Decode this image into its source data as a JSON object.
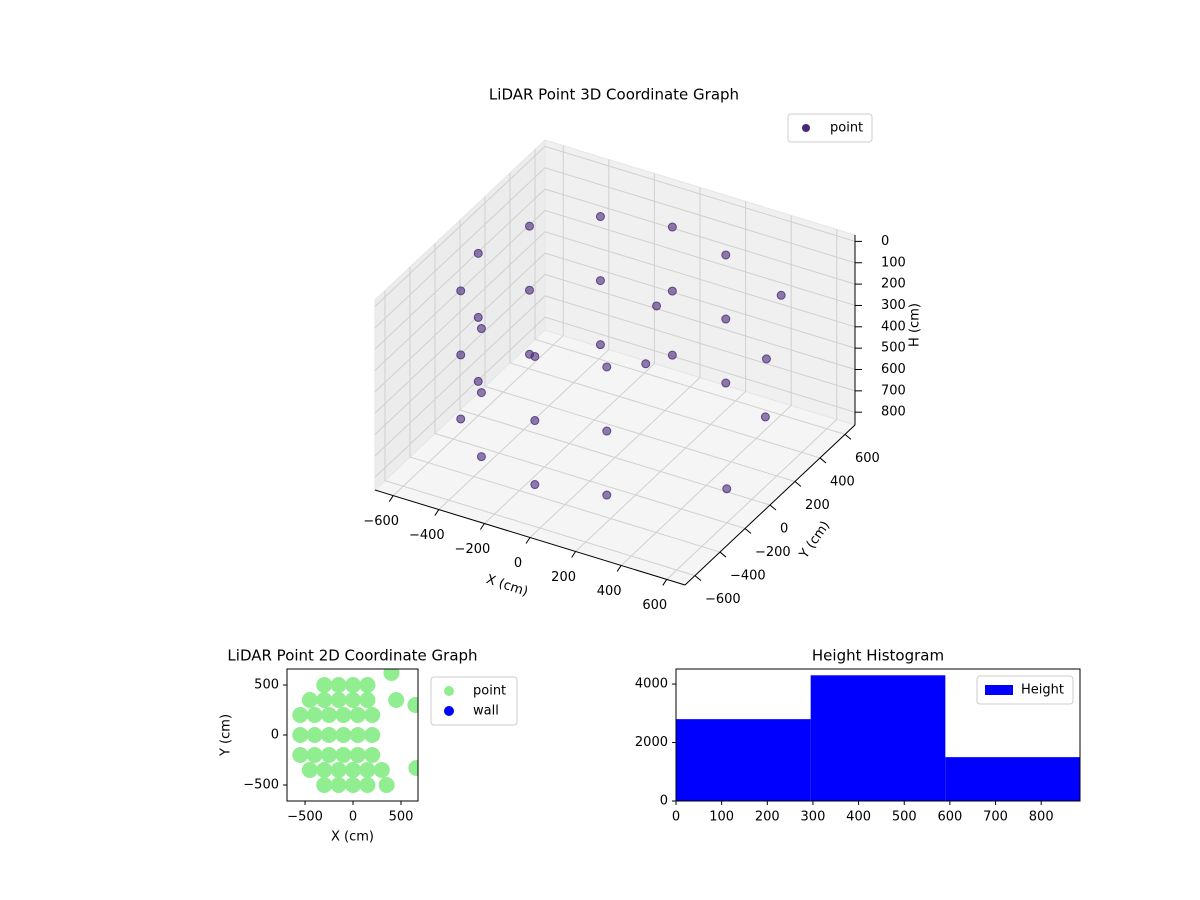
{
  "chart_data": [
    {
      "type": "scatter3d",
      "title": "LiDAR Point 3D Coordinate Graph",
      "xlabel": "X (cm)",
      "ylabel": "Y (cm)",
      "zlabel": "H (cm)",
      "xlim": [
        -680,
        680
      ],
      "ylim": [
        -680,
        680
      ],
      "zlim": [
        860,
        -30
      ],
      "xticks": [
        {
          "value": -600,
          "label": "−600"
        },
        {
          "value": -400,
          "label": "−400"
        },
        {
          "value": -200,
          "label": "−200"
        },
        0,
        200,
        400,
        600
      ],
      "yticks": [
        {
          "value": -600,
          "label": "−600"
        },
        {
          "value": -400,
          "label": "−400"
        },
        {
          "value": -200,
          "label": "−200"
        },
        0,
        200,
        400,
        600
      ],
      "zticks": [
        0,
        100,
        200,
        300,
        400,
        500,
        600,
        700,
        800
      ],
      "legend_loc": "upper right",
      "series": [
        {
          "name": "point",
          "color": "#482878",
          "x": [
            -50,
            -325,
            -526,
            -600,
            -526,
            -325,
            -50,
            225,
            225,
            -50,
            -325,
            -526,
            -600,
            -526,
            -325,
            -50,
            225,
            225,
            -50,
            -325,
            -526,
            -600,
            -526,
            -325,
            -50,
            225,
            225,
            500,
            550,
            600,
            400,
            100,
            80
          ],
          "y": [
            550,
            476,
            275,
            0,
            -275,
            -476,
            -550,
            -476,
            476,
            550,
            476,
            275,
            0,
            -275,
            -476,
            -550,
            -476,
            476,
            550,
            476,
            275,
            0,
            -275,
            -476,
            -550,
            -476,
            476,
            300,
            200,
            -200,
            600,
            150,
            100
          ],
          "z": [
            100,
            100,
            100,
            100,
            100,
            100,
            100,
            100,
            100,
            400,
            400,
            400,
            400,
            400,
            400,
            400,
            400,
            400,
            700,
            700,
            700,
            700,
            700,
            700,
            700,
            700,
            700,
            400,
            600,
            700,
            300,
            200,
            450
          ]
        }
      ]
    },
    {
      "type": "scatter",
      "title": "LiDAR Point 2D Coordinate Graph",
      "xlabel": "X (cm)",
      "ylabel": "Y (cm)",
      "xlim": [
        -688,
        677
      ],
      "ylim": [
        -660,
        660
      ],
      "xticks": [
        {
          "value": -500,
          "label": "−500"
        },
        0,
        500
      ],
      "yticks": [
        {
          "value": -500,
          "label": "−500"
        },
        0,
        500
      ],
      "legend_loc": "outside right",
      "series": [
        {
          "name": "point",
          "color": "#90ee90",
          "x": [
            -300,
            -150,
            0,
            150,
            -450,
            -300,
            -150,
            0,
            150,
            450,
            -550,
            -400,
            -250,
            -100,
            50,
            200,
            -550,
            -400,
            -250,
            -100,
            50,
            200,
            -550,
            -400,
            -250,
            -100,
            50,
            200,
            -450,
            -300,
            -150,
            0,
            150,
            300,
            -300,
            -150,
            0,
            150,
            650,
            660,
            350,
            400
          ],
          "y": [
            500,
            500,
            500,
            500,
            350,
            350,
            350,
            350,
            350,
            350,
            200,
            200,
            200,
            200,
            200,
            200,
            0,
            0,
            0,
            0,
            0,
            0,
            -200,
            -200,
            -200,
            -200,
            -200,
            -200,
            -350,
            -350,
            -350,
            -350,
            -350,
            -350,
            -500,
            -500,
            -500,
            -500,
            300,
            -330,
            -500,
            620
          ]
        },
        {
          "name": "wall",
          "color": "#0000ff",
          "x": [],
          "y": []
        }
      ]
    },
    {
      "type": "histogram",
      "title": "Height Histogram",
      "bins": [
        0,
        295,
        590,
        885
      ],
      "xlim": [
        0,
        885
      ],
      "ylim": [
        0,
        4515
      ],
      "xticks": [
        0,
        100,
        200,
        300,
        400,
        500,
        600,
        700,
        800
      ],
      "yticks": [
        0,
        2000,
        4000
      ],
      "legend_loc": "upper right",
      "series": [
        {
          "name": "Height",
          "color": "#0000ff",
          "values": [
            2800,
            4300,
            1500
          ]
        }
      ]
    }
  ]
}
